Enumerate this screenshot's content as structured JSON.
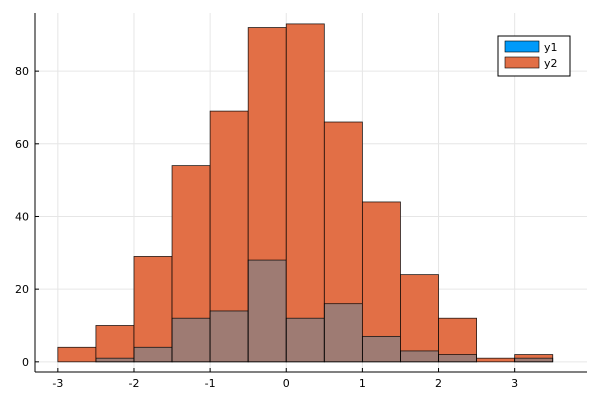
{
  "chart_data": {
    "type": "bar",
    "bin_edges": [
      -3,
      -2.5,
      -2,
      -1.5,
      -1,
      -0.5,
      0,
      0.5,
      1,
      1.5,
      2,
      2.5,
      3,
      3.5
    ],
    "series": [
      {
        "name": "y1",
        "color": "#009AF9",
        "values": [
          0,
          1,
          4,
          12,
          14,
          28,
          12,
          16,
          7,
          3,
          2,
          0,
          1
        ]
      },
      {
        "name": "y2",
        "color": "#E26F46",
        "values": [
          4,
          10,
          29,
          54,
          69,
          92,
          93,
          66,
          44,
          24,
          12,
          1,
          2
        ]
      }
    ],
    "overlap_color": "#9E7B73",
    "xlim": [
      -3.3,
      3.95
    ],
    "ylim": [
      -2.8,
      96
    ],
    "x_ticks": [
      -3,
      -2,
      -1,
      0,
      1,
      2,
      3
    ],
    "x_tick_labels": [
      "-3",
      "-2",
      "-1",
      "0",
      "1",
      "2",
      "3"
    ],
    "y_ticks": [
      0,
      20,
      40,
      60,
      80
    ],
    "y_tick_labels": [
      "0",
      "20",
      "40",
      "60",
      "80"
    ],
    "grid": true,
    "legend_position": "top-right"
  }
}
